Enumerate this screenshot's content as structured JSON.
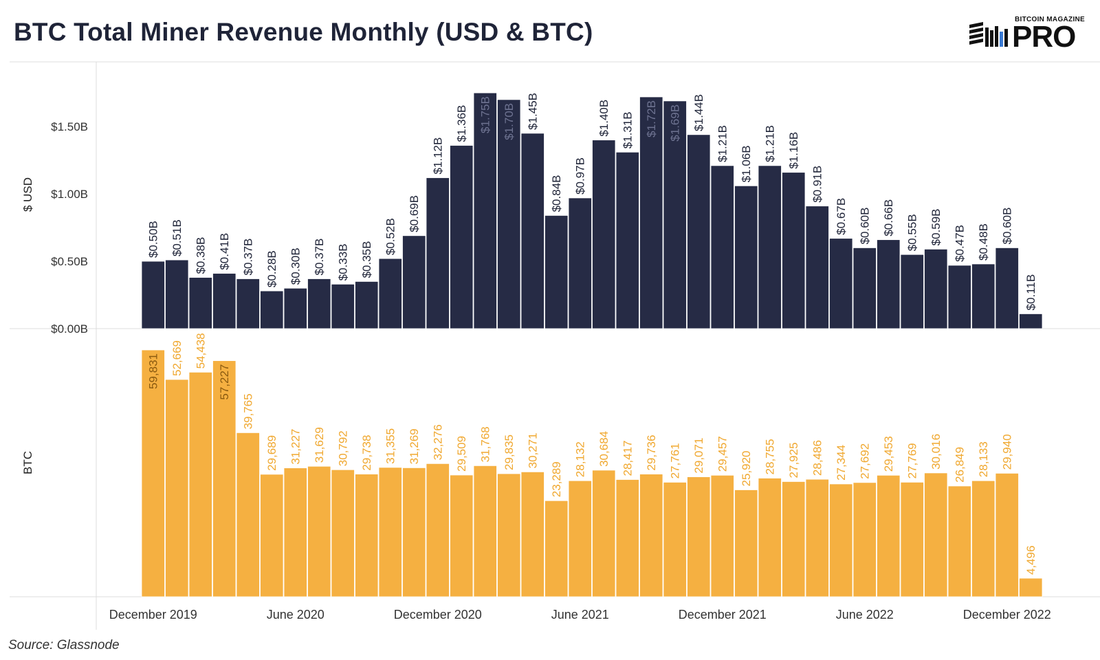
{
  "title": "BTC Total Miner Revenue Monthly (USD & BTC)",
  "logo": {
    "small_text": "BITCOIN MAGAZINE",
    "big_text": "PRO"
  },
  "source": "Source: Glassnode",
  "colors": {
    "usd_bar": "#262b45",
    "btc_bar": "#f5b041",
    "btc_label": "#f0a830",
    "usd_label": "#1f2438",
    "usd_label_inside": "#6e7391"
  },
  "chart_data": [
    {
      "type": "bar",
      "ylabel": "$ USD",
      "ylim": [
        0,
        1.98
      ],
      "yticks": [
        {
          "value": 0.0,
          "label": "$0.00B"
        },
        {
          "value": 0.5,
          "label": "$0.50B"
        },
        {
          "value": 1.0,
          "label": "$1.00B"
        },
        {
          "value": 1.5,
          "label": "$1.50B"
        }
      ],
      "values": [
        0.5,
        0.51,
        0.38,
        0.41,
        0.37,
        0.28,
        0.3,
        0.37,
        0.33,
        0.35,
        0.52,
        0.69,
        1.12,
        1.36,
        1.75,
        1.7,
        1.45,
        0.84,
        0.97,
        1.4,
        1.31,
        1.72,
        1.69,
        1.44,
        1.21,
        1.06,
        1.21,
        1.16,
        0.91,
        0.67,
        0.6,
        0.66,
        0.55,
        0.59,
        0.47,
        0.48,
        0.6,
        0.11
      ],
      "labels": [
        "$0.50B",
        "$0.51B",
        "$0.38B",
        "$0.41B",
        "$0.37B",
        "$0.28B",
        "$0.30B",
        "$0.37B",
        "$0.33B",
        "$0.35B",
        "$0.52B",
        "$0.69B",
        "$1.12B",
        "$1.36B",
        "$1.75B",
        "$1.70B",
        "$1.45B",
        "$0.84B",
        "$0.97B",
        "$1.40B",
        "$1.31B",
        "$1.72B",
        "$1.69B",
        "$1.44B",
        "$1.21B",
        "$1.06B",
        "$1.21B",
        "$1.16B",
        "$0.91B",
        "$0.67B",
        "$0.60B",
        "$0.66B",
        "$0.55B",
        "$0.59B",
        "$0.47B",
        "$0.48B",
        "$0.60B",
        "$0.11B"
      ],
      "labels_inside": [
        14,
        15,
        21,
        22
      ]
    },
    {
      "type": "bar",
      "ylabel": "BTC",
      "ylim": [
        0,
        65000
      ],
      "values": [
        59831,
        52669,
        54438,
        57227,
        39765,
        29689,
        31227,
        31629,
        30792,
        29738,
        31355,
        31269,
        32276,
        29509,
        31768,
        29835,
        30271,
        23289,
        28132,
        30684,
        28417,
        29736,
        27761,
        29071,
        29457,
        25920,
        28755,
        27925,
        28486,
        27344,
        27692,
        29453,
        27769,
        30016,
        26849,
        28133,
        29940,
        4496
      ],
      "labels": [
        "59,831",
        "52,669",
        "54,438",
        "57,227",
        "39,765",
        "29,689",
        "31,227",
        "31,629",
        "30,792",
        "29,738",
        "31,355",
        "31,269",
        "32,276",
        "29,509",
        "31,768",
        "29,835",
        "30,271",
        "23,289",
        "28,132",
        "30,684",
        "28,417",
        "29,736",
        "27,761",
        "29,071",
        "29,457",
        "25,920",
        "28,755",
        "27,925",
        "28,486",
        "27,344",
        "27,692",
        "29,453",
        "27,769",
        "30,016",
        "26,849",
        "28,133",
        "29,940",
        "4,496"
      ],
      "labels_inside": [
        0,
        3
      ]
    }
  ],
  "x_axis": {
    "ticks": [
      {
        "index": 0,
        "label": "December 2019"
      },
      {
        "index": 6,
        "label": "June 2020"
      },
      {
        "index": 12,
        "label": "December 2020"
      },
      {
        "index": 18,
        "label": "June 2021"
      },
      {
        "index": 24,
        "label": "December 2021"
      },
      {
        "index": 30,
        "label": "June 2022"
      },
      {
        "index": 36,
        "label": "December 2022"
      }
    ]
  }
}
